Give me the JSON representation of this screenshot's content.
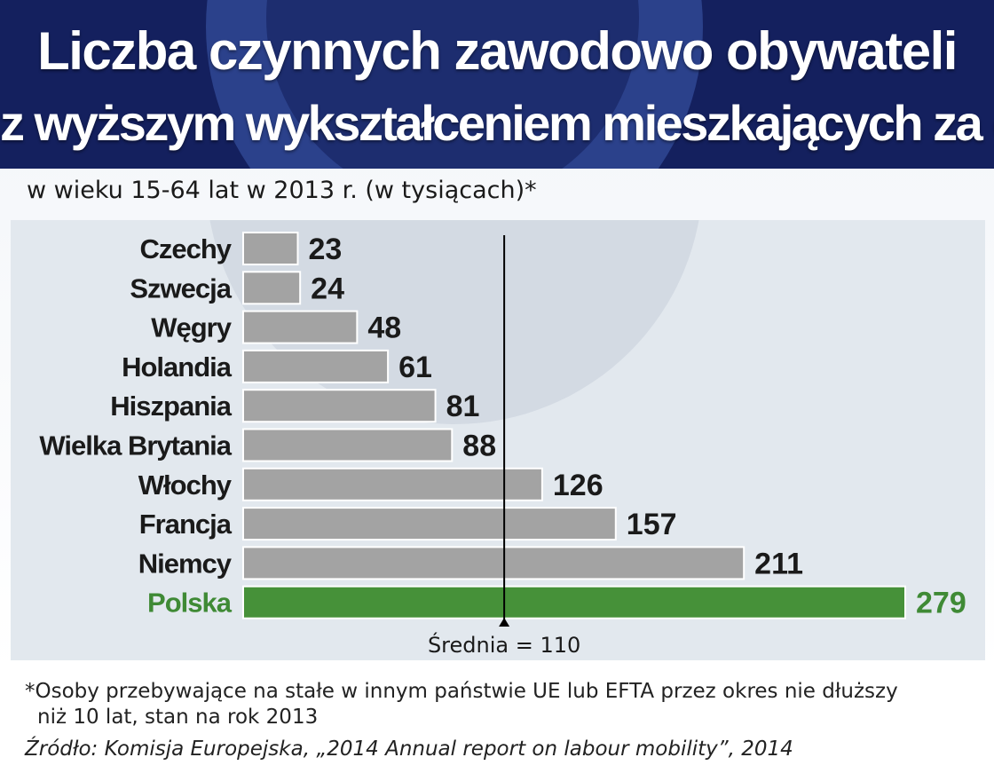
{
  "title_line1": "Liczba czynnych zawodowo obywateli",
  "title_line2": "z wyższym wykształceniem mieszkających za granicą",
  "subtitle": "w wieku 15-64 lat w 2013 r. (w tysiącach)*",
  "footnote_line1": "*Osoby przebywające na stałe w innym państwie UE lub EFTA przez okres nie dłuższy",
  "footnote_line2": "niż 10 lat, stan na rok 2013",
  "source": "Źródło: Komisja Europejska, „2014 Annual report on labour mobility”, 2014",
  "colors": {
    "header": "#14205e",
    "bar": "#a3a3a3",
    "highlight_bar": "#469139",
    "highlight_text": "#3f8a35",
    "plot_background": "#e2e8ee"
  },
  "chart_data": {
    "type": "bar",
    "orientation": "horizontal",
    "title": "Liczba czynnych zawodowo obywateli z wyższym wykształceniem mieszkających za granicą",
    "subtitle": "w wieku 15-64 lat w 2013 r. (w tysiącach)*",
    "categories": [
      "Czechy",
      "Szwecja",
      "Węgry",
      "Holandia",
      "Hiszpania",
      "Wielka Brytania",
      "Włochy",
      "Francja",
      "Niemcy",
      "Polska"
    ],
    "values": [
      23,
      24,
      48,
      61,
      81,
      88,
      126,
      157,
      211,
      279
    ],
    "value_labels": [
      "23",
      "24",
      "48",
      "61",
      "81",
      "88",
      "126",
      "157",
      "211",
      "279"
    ],
    "highlight": "Polska",
    "xlim": [
      0,
      279
    ],
    "grid": false,
    "legend": "none",
    "reference_line": {
      "value": 110,
      "label": "Średnia = 110"
    }
  }
}
